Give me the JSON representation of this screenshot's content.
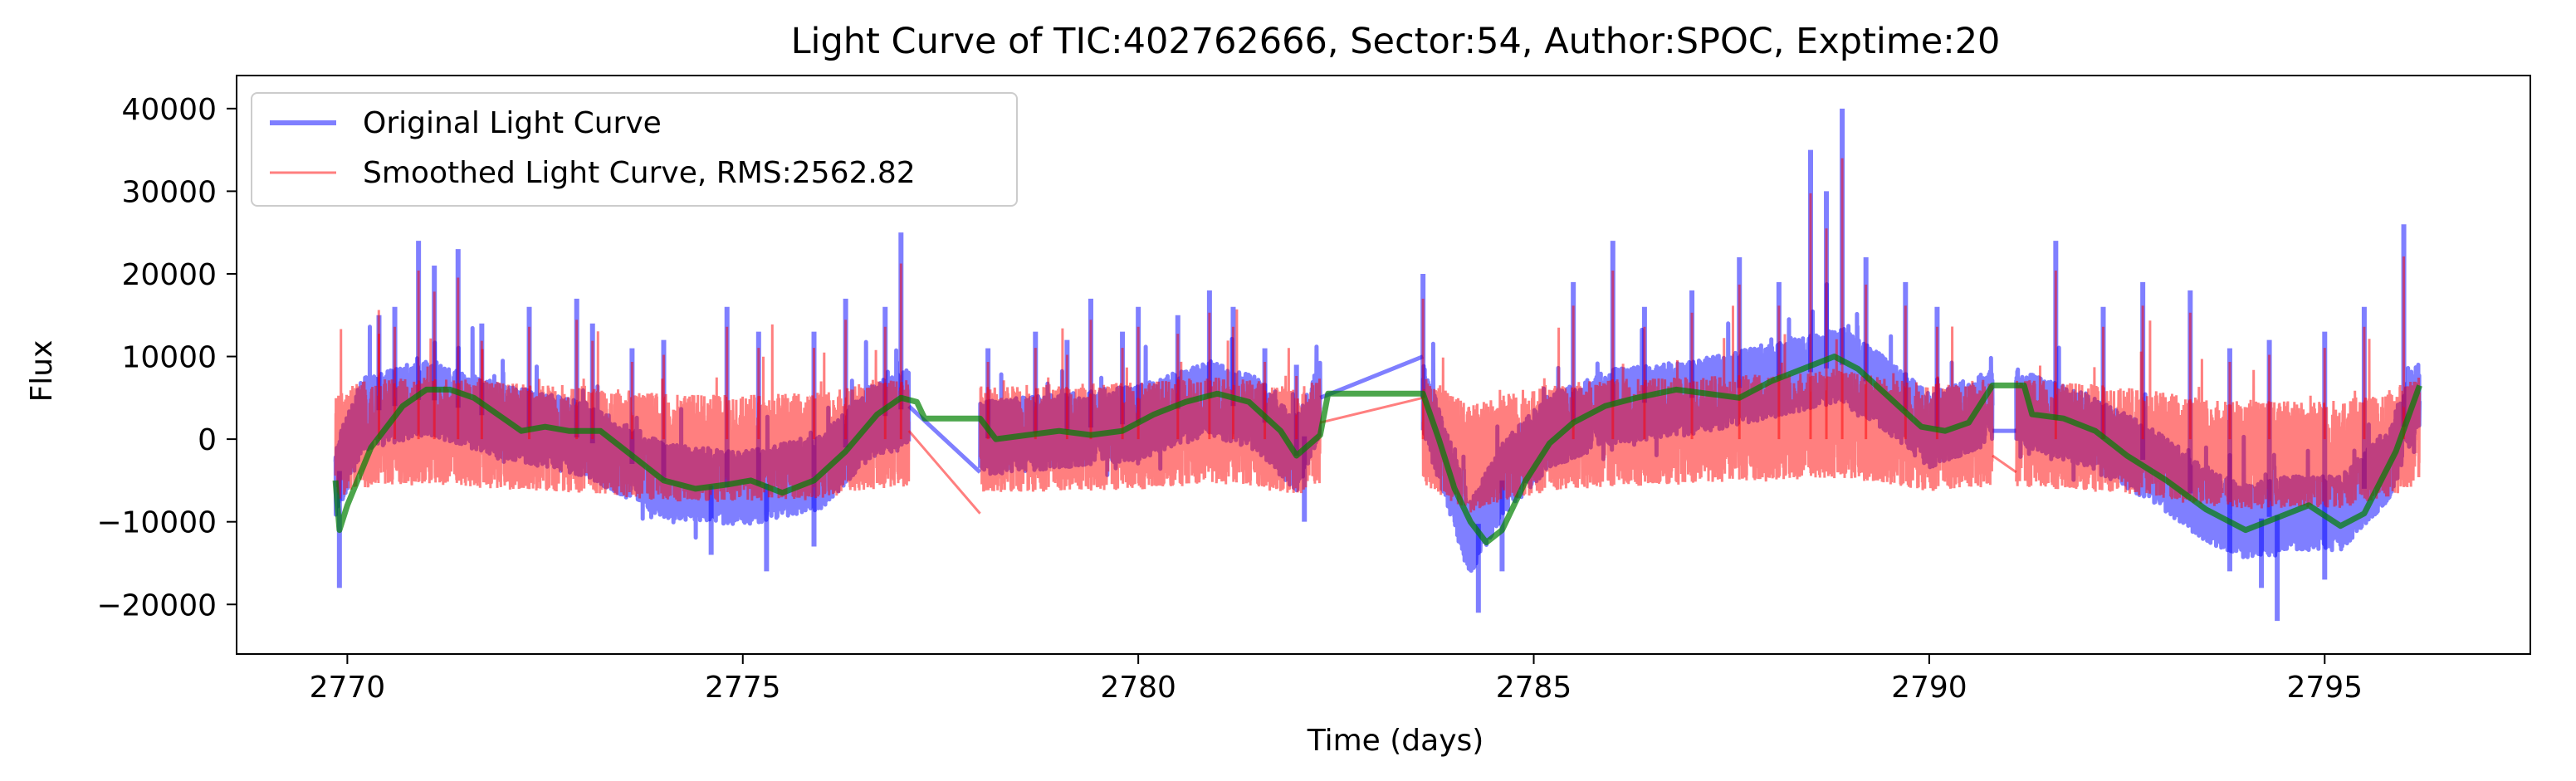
{
  "chart_data": {
    "type": "line",
    "title": "Light Curve of TIC:402762666, Sector:54, Author:SPOC, Exptime:20",
    "xlabel": "Time (days)",
    "ylabel": "Flux",
    "xlim": [
      2768.6,
      2797.6
    ],
    "ylim": [
      -26000,
      44000
    ],
    "x_ticks": [
      2770,
      2775,
      2780,
      2785,
      2790,
      2795
    ],
    "x_tick_labels": [
      "2770",
      "2775",
      "2780",
      "2785",
      "2790",
      "2795"
    ],
    "y_ticks": [
      -20000,
      -10000,
      0,
      10000,
      20000,
      30000,
      40000
    ],
    "y_tick_labels": [
      "−20000",
      "−10000",
      "0",
      "10000",
      "20000",
      "30000",
      "40000"
    ],
    "grid": false,
    "legend_position": "top-left",
    "series": [
      {
        "name": "Original Light Curve",
        "color": "#0000ff",
        "opacity": 0.5,
        "segments": [
          {
            "x_start": 2769.85,
            "x_end": 2777.1,
            "baseline": [
              [
                2769.85,
                -5000
              ],
              [
                2770.2,
                3000
              ],
              [
                2771.0,
                5000
              ],
              [
                2772.0,
                2000
              ],
              [
                2773.0,
                0
              ],
              [
                2774.0,
                -5000
              ],
              [
                2775.0,
                -6000
              ],
              [
                2776.0,
                -4000
              ],
              [
                2776.6,
                2000
              ],
              [
                2777.1,
                4000
              ]
            ],
            "spikes": [
              [
                2770.4,
                15000
              ],
              [
                2770.6,
                16000
              ],
              [
                2770.9,
                24000
              ],
              [
                2771.1,
                21000
              ],
              [
                2771.4,
                23000
              ],
              [
                2771.7,
                14000
              ],
              [
                2772.3,
                16000
              ],
              [
                2772.9,
                17000
              ],
              [
                2773.1,
                14000
              ],
              [
                2773.6,
                11000
              ],
              [
                2774.0,
                12000
              ],
              [
                2774.8,
                16000
              ],
              [
                2775.2,
                13000
              ],
              [
                2775.9,
                13000
              ],
              [
                2776.3,
                17000
              ],
              [
                2776.8,
                16000
              ],
              [
                2777.0,
                25000
              ]
            ],
            "dips": [
              [
                2769.9,
                -18000
              ],
              [
                2774.6,
                -14000
              ],
              [
                2775.3,
                -16000
              ],
              [
                2775.9,
                -13000
              ]
            ]
          },
          {
            "x_start": 2778.0,
            "x_end": 2782.3,
            "baseline": [
              [
                2778.0,
                0
              ],
              [
                2779.0,
                1000
              ],
              [
                2780.0,
                2000
              ],
              [
                2780.9,
                5000
              ],
              [
                2781.5,
                3000
              ],
              [
                2782.0,
                -2000
              ],
              [
                2782.3,
                5000
              ]
            ],
            "spikes": [
              [
                2778.1,
                11000
              ],
              [
                2778.7,
                13000
              ],
              [
                2779.1,
                12000
              ],
              [
                2779.4,
                17000
              ],
              [
                2779.8,
                13000
              ],
              [
                2780.0,
                16000
              ],
              [
                2780.5,
                15000
              ],
              [
                2780.9,
                18000
              ],
              [
                2781.2,
                16000
              ],
              [
                2781.6,
                11000
              ],
              [
                2782.0,
                9000
              ]
            ],
            "dips": [
              [
                2782.1,
                -10000
              ]
            ]
          },
          {
            "x_start": 2783.6,
            "x_end": 2790.8,
            "baseline": [
              [
                2783.6,
                5000
              ],
              [
                2784.2,
                -12000
              ],
              [
                2784.6,
                -5000
              ],
              [
                2785.2,
                1000
              ],
              [
                2786.0,
                4000
              ],
              [
                2787.0,
                5000
              ],
              [
                2788.0,
                7000
              ],
              [
                2788.9,
                9000
              ],
              [
                2789.5,
                5000
              ],
              [
                2790.0,
                1000
              ],
              [
                2790.8,
                4000
              ]
            ],
            "spikes": [
              [
                2783.6,
                20000
              ],
              [
                2785.5,
                19000
              ],
              [
                2786.0,
                24000
              ],
              [
                2786.4,
                16000
              ],
              [
                2787.0,
                18000
              ],
              [
                2787.6,
                22000
              ],
              [
                2788.1,
                19000
              ],
              [
                2788.5,
                35000
              ],
              [
                2788.7,
                30000
              ],
              [
                2788.9,
                40000
              ],
              [
                2789.2,
                22000
              ],
              [
                2789.7,
                19000
              ],
              [
                2790.1,
                16000
              ]
            ],
            "dips": [
              [
                2784.3,
                -21000
              ],
              [
                2784.6,
                -16000
              ]
            ]
          },
          {
            "x_start": 2791.1,
            "x_end": 2796.2,
            "baseline": [
              [
                2791.1,
                4000
              ],
              [
                2792.0,
                1000
              ],
              [
                2792.8,
                -3000
              ],
              [
                2793.5,
                -8000
              ],
              [
                2794.0,
                -10000
              ],
              [
                2794.5,
                -9000
              ],
              [
                2795.2,
                -9000
              ],
              [
                2795.8,
                -3000
              ],
              [
                2796.2,
                6000
              ]
            ],
            "spikes": [
              [
                2791.6,
                24000
              ],
              [
                2792.2,
                16000
              ],
              [
                2792.7,
                19000
              ],
              [
                2793.3,
                18000
              ],
              [
                2793.8,
                11000
              ],
              [
                2794.3,
                12000
              ],
              [
                2795.0,
                13000
              ],
              [
                2795.5,
                16000
              ],
              [
                2796.0,
                26000
              ]
            ],
            "dips": [
              [
                2793.8,
                -16000
              ],
              [
                2794.2,
                -18000
              ],
              [
                2794.4,
                -22000
              ],
              [
                2795.0,
                -17000
              ]
            ]
          }
        ],
        "connectors": [
          [
            2777.1,
            4000,
            2778.0,
            -4000
          ],
          [
            2782.3,
            5000,
            2783.6,
            10000
          ],
          [
            2790.8,
            1000,
            2791.1,
            1000
          ]
        ]
      },
      {
        "name": "Smoothed Light Curve, RMS:2562.82",
        "color": "#ff0000",
        "opacity": 0.5
      },
      {
        "color": "#008000",
        "opacity": 0.7,
        "points": [
          [
            2769.85,
            -5000
          ],
          [
            2769.9,
            -11000
          ],
          [
            2770.0,
            -8000
          ],
          [
            2770.3,
            -1000
          ],
          [
            2770.7,
            4000
          ],
          [
            2771.0,
            6000
          ],
          [
            2771.3,
            6000
          ],
          [
            2771.6,
            5000
          ],
          [
            2771.9,
            3000
          ],
          [
            2772.2,
            1000
          ],
          [
            2772.5,
            1500
          ],
          [
            2772.8,
            1000
          ],
          [
            2773.2,
            1000
          ],
          [
            2773.6,
            -2000
          ],
          [
            2774.0,
            -5000
          ],
          [
            2774.4,
            -6000
          ],
          [
            2774.8,
            -5500
          ],
          [
            2775.1,
            -5000
          ],
          [
            2775.5,
            -6500
          ],
          [
            2775.9,
            -5000
          ],
          [
            2776.3,
            -1500
          ],
          [
            2776.7,
            3000
          ],
          [
            2777.0,
            5000
          ],
          [
            2777.2,
            4500
          ],
          [
            2777.3,
            2500
          ],
          [
            2778.0,
            2500
          ],
          [
            2778.2,
            0
          ],
          [
            2778.6,
            500
          ],
          [
            2779.0,
            1000
          ],
          [
            2779.4,
            500
          ],
          [
            2779.8,
            1000
          ],
          [
            2780.2,
            3000
          ],
          [
            2780.6,
            4500
          ],
          [
            2781.0,
            5500
          ],
          [
            2781.4,
            4500
          ],
          [
            2781.8,
            1000
          ],
          [
            2782.0,
            -2000
          ],
          [
            2782.3,
            500
          ],
          [
            2782.4,
            5500
          ],
          [
            2783.6,
            5500
          ],
          [
            2783.8,
            0
          ],
          [
            2784.0,
            -6000
          ],
          [
            2784.2,
            -10000
          ],
          [
            2784.4,
            -12500
          ],
          [
            2784.6,
            -11000
          ],
          [
            2784.9,
            -5000
          ],
          [
            2785.2,
            -500
          ],
          [
            2785.5,
            2000
          ],
          [
            2785.9,
            4000
          ],
          [
            2786.3,
            5000
          ],
          [
            2786.8,
            6000
          ],
          [
            2787.2,
            5500
          ],
          [
            2787.6,
            5000
          ],
          [
            2788.0,
            7000
          ],
          [
            2788.4,
            8500
          ],
          [
            2788.8,
            10000
          ],
          [
            2789.1,
            8500
          ],
          [
            2789.5,
            5000
          ],
          [
            2789.9,
            1500
          ],
          [
            2790.2,
            1000
          ],
          [
            2790.5,
            2000
          ],
          [
            2790.8,
            6500
          ],
          [
            2791.2,
            6500
          ],
          [
            2791.3,
            3000
          ],
          [
            2791.7,
            2500
          ],
          [
            2792.1,
            1000
          ],
          [
            2792.5,
            -2000
          ],
          [
            2793.0,
            -5000
          ],
          [
            2793.5,
            -8500
          ],
          [
            2794.0,
            -11000
          ],
          [
            2794.4,
            -9500
          ],
          [
            2794.8,
            -8000
          ],
          [
            2795.2,
            -10500
          ],
          [
            2795.5,
            -9000
          ],
          [
            2795.9,
            -1500
          ],
          [
            2796.2,
            6500
          ]
        ]
      }
    ]
  }
}
